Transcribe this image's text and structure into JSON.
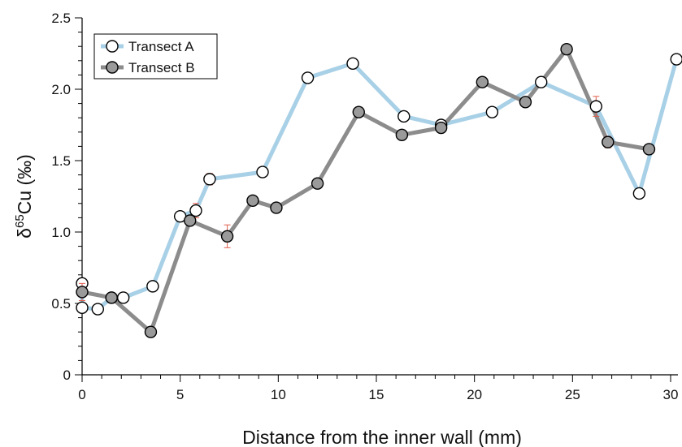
{
  "chart_data": {
    "type": "line",
    "xlabel": "Distance from the inner wall (mm)",
    "ylabel": {
      "prefix": "δ",
      "sup": "65",
      "main": "Cu (‰)"
    },
    "xlim": [
      0,
      30.5
    ],
    "ylim": [
      0,
      2.5
    ],
    "xticks": [
      0,
      5,
      10,
      15,
      20,
      25,
      30
    ],
    "xtick_labels": [
      "0",
      "5",
      "10",
      "15",
      "20",
      "25",
      "30"
    ],
    "yticks": [
      0,
      0.5,
      1.0,
      1.5,
      2.0,
      2.5
    ],
    "ytick_labels": [
      "0",
      "0.5",
      "1.0",
      "1.5",
      "2.0",
      "2.5"
    ],
    "grid": false,
    "legend_position": "top-left",
    "series": [
      {
        "name": "Transect A",
        "line_color": "#a8d0e6",
        "marker_fill": "#ffffff",
        "points": [
          {
            "x": 0.0,
            "y": 0.64,
            "err": 0.0
          },
          {
            "x": 0.0,
            "y": 0.47,
            "err": 0.0
          },
          {
            "x": 0.8,
            "y": 0.46,
            "err": 0.0
          },
          {
            "x": 1.5,
            "y": 0.54,
            "err": 0.0
          },
          {
            "x": 2.1,
            "y": 0.54,
            "err": 0.0
          },
          {
            "x": 3.6,
            "y": 0.62,
            "err": 0.0
          },
          {
            "x": 5.0,
            "y": 1.11,
            "err": 0.0
          },
          {
            "x": 5.8,
            "y": 1.15,
            "err": 0.05
          },
          {
            "x": 6.5,
            "y": 1.37,
            "err": 0.04
          },
          {
            "x": 9.2,
            "y": 1.42,
            "err": 0.0
          },
          {
            "x": 11.5,
            "y": 2.08,
            "err": 0.0
          },
          {
            "x": 13.8,
            "y": 2.18,
            "err": 0.03
          },
          {
            "x": 16.4,
            "y": 1.81,
            "err": 0.0
          },
          {
            "x": 18.3,
            "y": 1.75,
            "err": 0.0
          },
          {
            "x": 20.9,
            "y": 1.84,
            "err": 0.0
          },
          {
            "x": 23.4,
            "y": 2.05,
            "err": 0.0
          },
          {
            "x": 26.2,
            "y": 1.88,
            "err": 0.07
          },
          {
            "x": 28.4,
            "y": 1.27,
            "err": 0.0
          },
          {
            "x": 30.3,
            "y": 2.21,
            "err": 0.0
          }
        ]
      },
      {
        "name": "Transect B",
        "line_color": "#8c8c8c",
        "marker_fill": "#9a9a9a",
        "points": [
          {
            "x": 0.0,
            "y": 0.58,
            "err": 0.06
          },
          {
            "x": 1.5,
            "y": 0.54,
            "err": 0.0
          },
          {
            "x": 3.5,
            "y": 0.3,
            "err": 0.0
          },
          {
            "x": 5.5,
            "y": 1.08,
            "err": 0.0
          },
          {
            "x": 7.4,
            "y": 0.97,
            "err": 0.08
          },
          {
            "x": 8.7,
            "y": 1.22,
            "err": 0.0
          },
          {
            "x": 9.9,
            "y": 1.17,
            "err": 0.0
          },
          {
            "x": 12.0,
            "y": 1.34,
            "err": 0.0
          },
          {
            "x": 14.1,
            "y": 1.84,
            "err": 0.0
          },
          {
            "x": 16.3,
            "y": 1.68,
            "err": 0.0
          },
          {
            "x": 18.3,
            "y": 1.73,
            "err": 0.0
          },
          {
            "x": 20.4,
            "y": 2.05,
            "err": 0.0
          },
          {
            "x": 22.6,
            "y": 1.91,
            "err": 0.0
          },
          {
            "x": 24.7,
            "y": 2.28,
            "err": 0.0
          },
          {
            "x": 26.8,
            "y": 1.63,
            "err": 0.04
          },
          {
            "x": 28.9,
            "y": 1.58,
            "err": 0.0
          }
        ]
      }
    ]
  }
}
